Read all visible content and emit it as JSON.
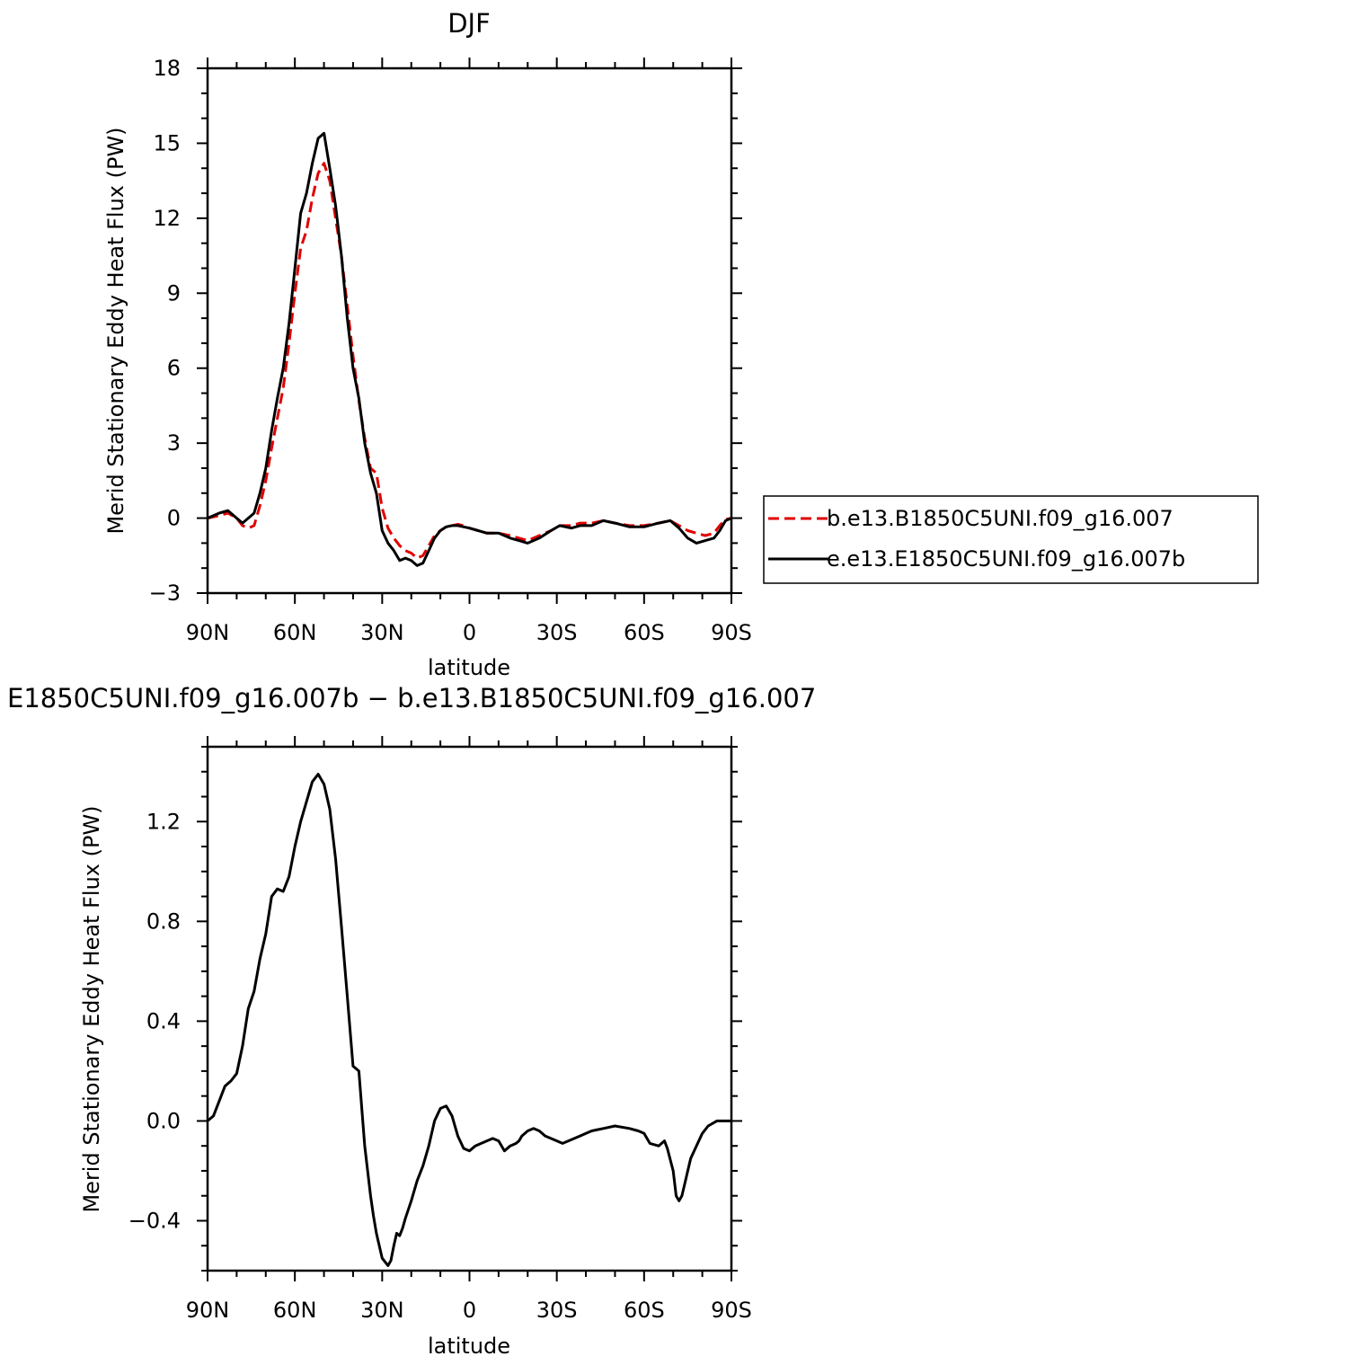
{
  "chart_data": [
    {
      "type": "line",
      "title": "DJF",
      "xlabel": "latitude",
      "ylabel": "Merid Stationary Eddy Heat Flux (PW)",
      "xlim": [
        90,
        -90
      ],
      "ylim": [
        -3,
        18
      ],
      "x_ticks": [
        90,
        60,
        30,
        0,
        -30,
        -60,
        -90
      ],
      "x_tick_labels": [
        "90N",
        "60N",
        "30N",
        "0",
        "30S",
        "60S",
        "90S"
      ],
      "y_ticks": [
        -3,
        0,
        3,
        6,
        9,
        12,
        15,
        18
      ],
      "y_tick_labels": [
        "−3",
        "0",
        "3",
        "6",
        "9",
        "12",
        "15",
        "18"
      ],
      "grid": false,
      "legend_position": "right-outside",
      "series": [
        {
          "name": "b.e13.B1850C5UNI.f09_g16.007",
          "color": "#e00000",
          "dash": "dashed",
          "x": [
            90,
            86,
            83,
            80,
            78,
            76,
            74,
            72,
            70,
            68,
            66,
            64,
            62,
            60,
            58,
            56,
            54,
            52,
            50,
            48,
            46,
            44,
            42,
            40,
            38,
            36,
            34,
            32,
            30,
            28,
            26,
            24,
            22,
            20,
            18,
            16,
            14,
            12,
            10,
            8,
            6,
            4,
            2,
            0,
            -3,
            -6,
            -10,
            -14,
            -17,
            -20,
            -24,
            -28,
            -31,
            -35,
            -38,
            -42,
            -46,
            -50,
            -55,
            -60,
            -65,
            -69,
            -72,
            -75,
            -78,
            -81,
            -84,
            -86,
            -88,
            -90
          ],
          "y": [
            0.0,
            0.1,
            0.2,
            0.0,
            -0.3,
            -0.4,
            -0.3,
            0.5,
            1.5,
            2.8,
            4.0,
            5.2,
            7.0,
            9.0,
            10.8,
            11.5,
            12.8,
            13.8,
            14.2,
            13.5,
            12.0,
            10.5,
            8.5,
            6.5,
            4.7,
            3.2,
            2.0,
            1.8,
            0.4,
            -0.4,
            -0.8,
            -1.1,
            -1.3,
            -1.4,
            -1.6,
            -1.5,
            -1.1,
            -0.7,
            -0.5,
            -0.35,
            -0.3,
            -0.25,
            -0.3,
            -0.4,
            -0.5,
            -0.6,
            -0.6,
            -0.7,
            -0.8,
            -0.9,
            -0.7,
            -0.5,
            -0.3,
            -0.3,
            -0.2,
            -0.2,
            -0.1,
            -0.2,
            -0.3,
            -0.3,
            -0.2,
            -0.1,
            -0.3,
            -0.5,
            -0.6,
            -0.7,
            -0.6,
            -0.3,
            -0.05,
            0.0
          ]
        },
        {
          "name": "e.e13.E1850C5UNI.f09_g16.007b",
          "color": "#000000",
          "dash": "solid",
          "x": [
            90,
            86,
            83,
            80,
            78,
            76,
            74,
            72,
            70,
            68,
            66,
            64,
            62,
            60,
            58,
            56,
            54,
            52,
            50,
            48,
            46,
            44,
            42,
            40,
            38,
            36,
            34,
            32,
            30,
            28,
            26,
            24,
            22,
            20,
            18,
            16,
            14,
            12,
            10,
            8,
            6,
            4,
            2,
            0,
            -3,
            -6,
            -10,
            -14,
            -17,
            -20,
            -24,
            -28,
            -31,
            -35,
            -38,
            -42,
            -46,
            -50,
            -55,
            -60,
            -65,
            -69,
            -72,
            -75,
            -78,
            -81,
            -84,
            -86,
            -88,
            -90
          ],
          "y": [
            0.0,
            0.2,
            0.3,
            0.0,
            -0.2,
            0.0,
            0.2,
            1.0,
            2.0,
            3.5,
            4.8,
            6.0,
            7.8,
            10.0,
            12.2,
            13.0,
            14.2,
            15.2,
            15.4,
            14.0,
            12.5,
            10.5,
            8.0,
            6.0,
            4.8,
            3.0,
            1.8,
            1.0,
            -0.5,
            -1.0,
            -1.3,
            -1.7,
            -1.6,
            -1.7,
            -1.9,
            -1.8,
            -1.3,
            -0.8,
            -0.5,
            -0.35,
            -0.3,
            -0.3,
            -0.35,
            -0.4,
            -0.5,
            -0.6,
            -0.6,
            -0.8,
            -0.9,
            -1.0,
            -0.8,
            -0.5,
            -0.3,
            -0.4,
            -0.3,
            -0.3,
            -0.1,
            -0.2,
            -0.35,
            -0.35,
            -0.2,
            -0.1,
            -0.4,
            -0.8,
            -1.0,
            -0.9,
            -0.8,
            -0.5,
            -0.1,
            0.0
          ]
        }
      ]
    },
    {
      "type": "line",
      "title": "E1850C5UNI.f09_g16.007b − b.e13.B1850C5UNI.f09_g16.007",
      "xlabel": "latitude",
      "ylabel": "Merid Stationary Eddy Heat Flux (PW)",
      "xlim": [
        90,
        -90
      ],
      "ylim": [
        -0.6,
        1.5
      ],
      "x_ticks": [
        90,
        60,
        30,
        0,
        -30,
        -60,
        -90
      ],
      "x_tick_labels": [
        "90N",
        "60N",
        "30N",
        "0",
        "30S",
        "60S",
        "90S"
      ],
      "y_ticks": [
        -0.4,
        0.0,
        0.4,
        0.8,
        1.2
      ],
      "y_tick_labels": [
        "−0.4",
        "0.0",
        "0.4",
        "0.8",
        "1.2"
      ],
      "grid": false,
      "series": [
        {
          "color": "#000000",
          "dash": "solid",
          "x": [
            90,
            88,
            86,
            84,
            82,
            80,
            78,
            76,
            74,
            72,
            70,
            68,
            66,
            64,
            62,
            60,
            58,
            56,
            54,
            52,
            50,
            48,
            46,
            44,
            42,
            40,
            38,
            36,
            34,
            33,
            32,
            30,
            28,
            27,
            26,
            25,
            24,
            23,
            22,
            20,
            18,
            16,
            14,
            12,
            10,
            8,
            6,
            4,
            2,
            0,
            -2,
            -4,
            -6,
            -8,
            -10,
            -12,
            -14,
            -16,
            -17,
            -18,
            -20,
            -22,
            -24,
            -26,
            -28,
            -30,
            -32,
            -34,
            -36,
            -38,
            -40,
            -42,
            -44,
            -46,
            -50,
            -55,
            -58,
            -60,
            -62,
            -65,
            -67,
            -68,
            -70,
            -71,
            -72,
            -73,
            -74,
            -75,
            -76,
            -78,
            -80,
            -82,
            -85,
            -88,
            -90
          ],
          "y": [
            0.0,
            0.02,
            0.08,
            0.14,
            0.16,
            0.19,
            0.3,
            0.45,
            0.52,
            0.65,
            0.75,
            0.9,
            0.93,
            0.92,
            0.98,
            1.1,
            1.2,
            1.28,
            1.36,
            1.39,
            1.35,
            1.25,
            1.05,
            0.78,
            0.5,
            0.22,
            0.2,
            -0.1,
            -0.3,
            -0.38,
            -0.45,
            -0.55,
            -0.58,
            -0.56,
            -0.5,
            -0.45,
            -0.46,
            -0.43,
            -0.39,
            -0.32,
            -0.24,
            -0.18,
            -0.1,
            0.0,
            0.05,
            0.06,
            0.02,
            -0.06,
            -0.11,
            -0.12,
            -0.1,
            -0.09,
            -0.08,
            -0.07,
            -0.08,
            -0.12,
            -0.1,
            -0.09,
            -0.08,
            -0.06,
            -0.04,
            -0.03,
            -0.04,
            -0.06,
            -0.07,
            -0.08,
            -0.09,
            -0.08,
            -0.07,
            -0.06,
            -0.05,
            -0.04,
            -0.035,
            -0.03,
            -0.02,
            -0.03,
            -0.04,
            -0.05,
            -0.09,
            -0.1,
            -0.08,
            -0.11,
            -0.2,
            -0.3,
            -0.32,
            -0.3,
            -0.25,
            -0.2,
            -0.15,
            -0.1,
            -0.05,
            -0.02,
            0.0,
            0.0,
            0.0
          ]
        }
      ]
    }
  ]
}
